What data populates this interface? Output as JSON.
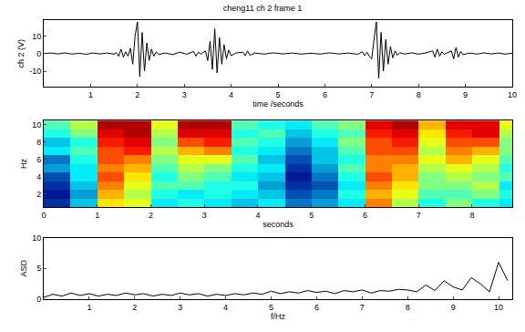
{
  "chart_data": [
    {
      "type": "line",
      "title": "cheng11 ch 2 frame 1",
      "x_label": "time /seconds",
      "y_label": "ch 2 (V)",
      "color": "#000000",
      "grid": false,
      "xlim": [
        0,
        10
      ],
      "xticks": [
        1,
        2,
        3,
        4,
        5,
        6,
        7,
        8,
        9,
        10
      ],
      "ylim": [
        -19,
        19
      ],
      "yticks": [
        -10,
        0,
        10
      ],
      "x": [
        0,
        0.15,
        0.3,
        0.45,
        0.6,
        0.75,
        0.9,
        1.05,
        1.2,
        1.35,
        1.5,
        1.55,
        1.6,
        1.65,
        1.7,
        1.75,
        1.8,
        1.85,
        1.9,
        1.95,
        2.0,
        2.05,
        2.1,
        2.15,
        2.2,
        2.25,
        2.3,
        2.35,
        2.4,
        2.45,
        2.6,
        2.75,
        2.9,
        3.05,
        3.2,
        3.25,
        3.3,
        3.35,
        3.45,
        3.5,
        3.55,
        3.6,
        3.65,
        3.7,
        3.75,
        3.8,
        3.85,
        3.9,
        3.95,
        4.0,
        4.1,
        4.25,
        4.3,
        4.35,
        4.4,
        4.5,
        4.7,
        4.9,
        5.1,
        5.3,
        5.5,
        5.7,
        5.9,
        6.1,
        6.3,
        6.5,
        6.7,
        6.8,
        6.85,
        6.9,
        6.95,
        7.0,
        7.05,
        7.1,
        7.15,
        7.2,
        7.25,
        7.3,
        7.35,
        7.4,
        7.45,
        7.5,
        7.55,
        7.6,
        7.7,
        7.85,
        8.0,
        8.15,
        8.3,
        8.35,
        8.4,
        8.45,
        8.5,
        8.55,
        8.6,
        8.7,
        8.75,
        8.8,
        8.85,
        8.9,
        8.95,
        9.1,
        9.25,
        9.4,
        9.55,
        9.7,
        9.85,
        10.0
      ],
      "values": [
        0,
        0.3,
        -0.2,
        0.4,
        -0.3,
        0.2,
        -0.4,
        0.3,
        -0.2,
        0.3,
        -0.3,
        0.5,
        -1.5,
        2.5,
        -2,
        1,
        -1.5,
        3,
        -6,
        10,
        18,
        -13,
        12,
        -10,
        6,
        -4,
        2.5,
        -1.5,
        1,
        -0.5,
        0.3,
        -0.6,
        0.8,
        -0.4,
        1.2,
        -1.5,
        0.8,
        -0.3,
        1.5,
        -4,
        7,
        -9,
        14,
        -11,
        9,
        -6,
        5,
        -3,
        2,
        -1.2,
        0.3,
        0.8,
        -1.2,
        1.5,
        -1,
        0.3,
        -0.3,
        0.4,
        -0.2,
        0.3,
        -0.3,
        0.2,
        -0.3,
        0.4,
        -0.2,
        0.3,
        -0.4,
        1,
        -1.2,
        0.8,
        -1.5,
        -3,
        8,
        18,
        -14,
        12,
        -10,
        8,
        -6,
        4,
        -2.5,
        1.5,
        -1,
        0.5,
        -0.3,
        0.4,
        -0.3,
        0.3,
        1.5,
        -2,
        2.5,
        -1.5,
        1,
        -0.5,
        0.3,
        1.5,
        -3,
        3.5,
        -2,
        1.2,
        -0.6,
        0.3,
        -0.3,
        0.4,
        -0.2,
        0.3,
        -0.3,
        0.2
      ]
    },
    {
      "type": "heatmap",
      "x_label": "seconds",
      "y_label": "Hz",
      "color": "Jet",
      "grid": false,
      "xlim": [
        0,
        8.75
      ],
      "xticks": [
        0,
        1,
        2,
        3,
        4,
        5,
        6,
        7,
        8
      ],
      "ylim": [
        0.5,
        10.5
      ],
      "yticks": [
        2,
        4,
        6,
        8,
        10
      ],
      "zlim": [
        0,
        1
      ],
      "x": [
        0.25,
        0.75,
        1.25,
        1.75,
        2.25,
        2.75,
        3.25,
        3.75,
        4.25,
        4.75,
        5.25,
        5.75,
        6.25,
        6.75,
        7.25,
        7.75,
        8.25,
        8.75
      ],
      "y": [
        1,
        2,
        3,
        4,
        5,
        6,
        7,
        8,
        9,
        10
      ],
      "cells": [
        [
          0.1,
          0.3,
          0.65,
          0.6,
          0.35,
          0.4,
          0.35,
          0.3,
          0.35,
          0.2,
          0.25,
          0.35,
          0.75,
          0.55,
          0.4,
          0.5,
          0.4,
          0.35
        ],
        [
          0.05,
          0.25,
          0.7,
          0.55,
          0.4,
          0.35,
          0.4,
          0.35,
          0.3,
          0.15,
          0.2,
          0.4,
          0.7,
          0.6,
          0.45,
          0.45,
          0.5,
          0.4
        ],
        [
          0.1,
          0.3,
          0.75,
          0.6,
          0.45,
          0.45,
          0.4,
          0.4,
          0.25,
          0.1,
          0.15,
          0.35,
          0.75,
          0.65,
          0.5,
          0.5,
          0.55,
          0.35
        ],
        [
          0.15,
          0.35,
          0.8,
          0.65,
          0.4,
          0.5,
          0.45,
          0.35,
          0.3,
          0.05,
          0.2,
          0.4,
          0.8,
          0.7,
          0.5,
          0.55,
          0.5,
          0.45
        ],
        [
          0.25,
          0.35,
          0.75,
          0.7,
          0.45,
          0.55,
          0.5,
          0.4,
          0.35,
          0.1,
          0.25,
          0.45,
          0.75,
          0.7,
          0.55,
          0.6,
          0.55,
          0.4
        ],
        [
          0.2,
          0.4,
          0.8,
          0.75,
          0.5,
          0.6,
          0.6,
          0.45,
          0.3,
          0.15,
          0.3,
          0.4,
          0.75,
          0.75,
          0.6,
          0.7,
          0.6,
          0.45
        ],
        [
          0.35,
          0.45,
          0.8,
          0.85,
          0.55,
          0.7,
          0.75,
          0.4,
          0.35,
          0.2,
          0.3,
          0.45,
          0.8,
          0.8,
          0.55,
          0.75,
          0.7,
          0.5
        ],
        [
          0.3,
          0.4,
          0.85,
          0.9,
          0.5,
          0.8,
          0.85,
          0.45,
          0.4,
          0.25,
          0.35,
          0.5,
          0.8,
          0.85,
          0.6,
          0.8,
          0.8,
          0.5
        ],
        [
          0.4,
          0.5,
          0.9,
          0.95,
          0.55,
          0.9,
          0.9,
          0.4,
          0.45,
          0.3,
          0.4,
          0.45,
          0.85,
          0.9,
          0.65,
          0.85,
          0.9,
          0.55
        ],
        [
          0.45,
          0.55,
          0.95,
          0.95,
          0.6,
          0.95,
          0.95,
          0.45,
          0.4,
          0.35,
          0.45,
          0.5,
          0.9,
          0.95,
          0.7,
          0.9,
          0.9,
          0.6
        ]
      ]
    },
    {
      "type": "line",
      "x_label": "f/Hz",
      "y_label": "ASD",
      "color": "#000000",
      "grid": false,
      "xlim": [
        0,
        10.3
      ],
      "xticks": [
        1,
        2,
        3,
        4,
        5,
        6,
        7,
        8,
        9,
        10
      ],
      "ylim": [
        0,
        10
      ],
      "yticks": [
        0,
        5,
        10
      ],
      "x": [
        0,
        0.2,
        0.4,
        0.6,
        0.8,
        1.0,
        1.2,
        1.4,
        1.6,
        1.8,
        2.0,
        2.2,
        2.4,
        2.6,
        2.8,
        3.0,
        3.2,
        3.4,
        3.6,
        3.8,
        4.0,
        4.2,
        4.4,
        4.6,
        4.8,
        5.0,
        5.2,
        5.4,
        5.6,
        5.8,
        6.0,
        6.2,
        6.4,
        6.6,
        6.8,
        7.0,
        7.2,
        7.4,
        7.6,
        7.8,
        8.0,
        8.2,
        8.4,
        8.6,
        8.8,
        9.0,
        9.2,
        9.4,
        9.6,
        9.8,
        10.0,
        10.2
      ],
      "values": [
        0.3,
        0.8,
        0.5,
        1.0,
        0.6,
        0.9,
        0.5,
        0.8,
        0.6,
        1.0,
        0.7,
        0.9,
        0.5,
        0.8,
        0.6,
        1.0,
        0.7,
        0.9,
        0.5,
        0.8,
        0.6,
        0.9,
        0.7,
        1.0,
        0.8,
        1.3,
        0.9,
        1.2,
        1.0,
        1.4,
        1.1,
        1.3,
        0.9,
        1.4,
        1.2,
        1.5,
        1.0,
        1.4,
        1.3,
        1.6,
        1.5,
        1.2,
        2.3,
        1.4,
        3.0,
        2.0,
        1.5,
        3.5,
        2.5,
        1.2,
        6.0,
        3.0
      ]
    }
  ]
}
